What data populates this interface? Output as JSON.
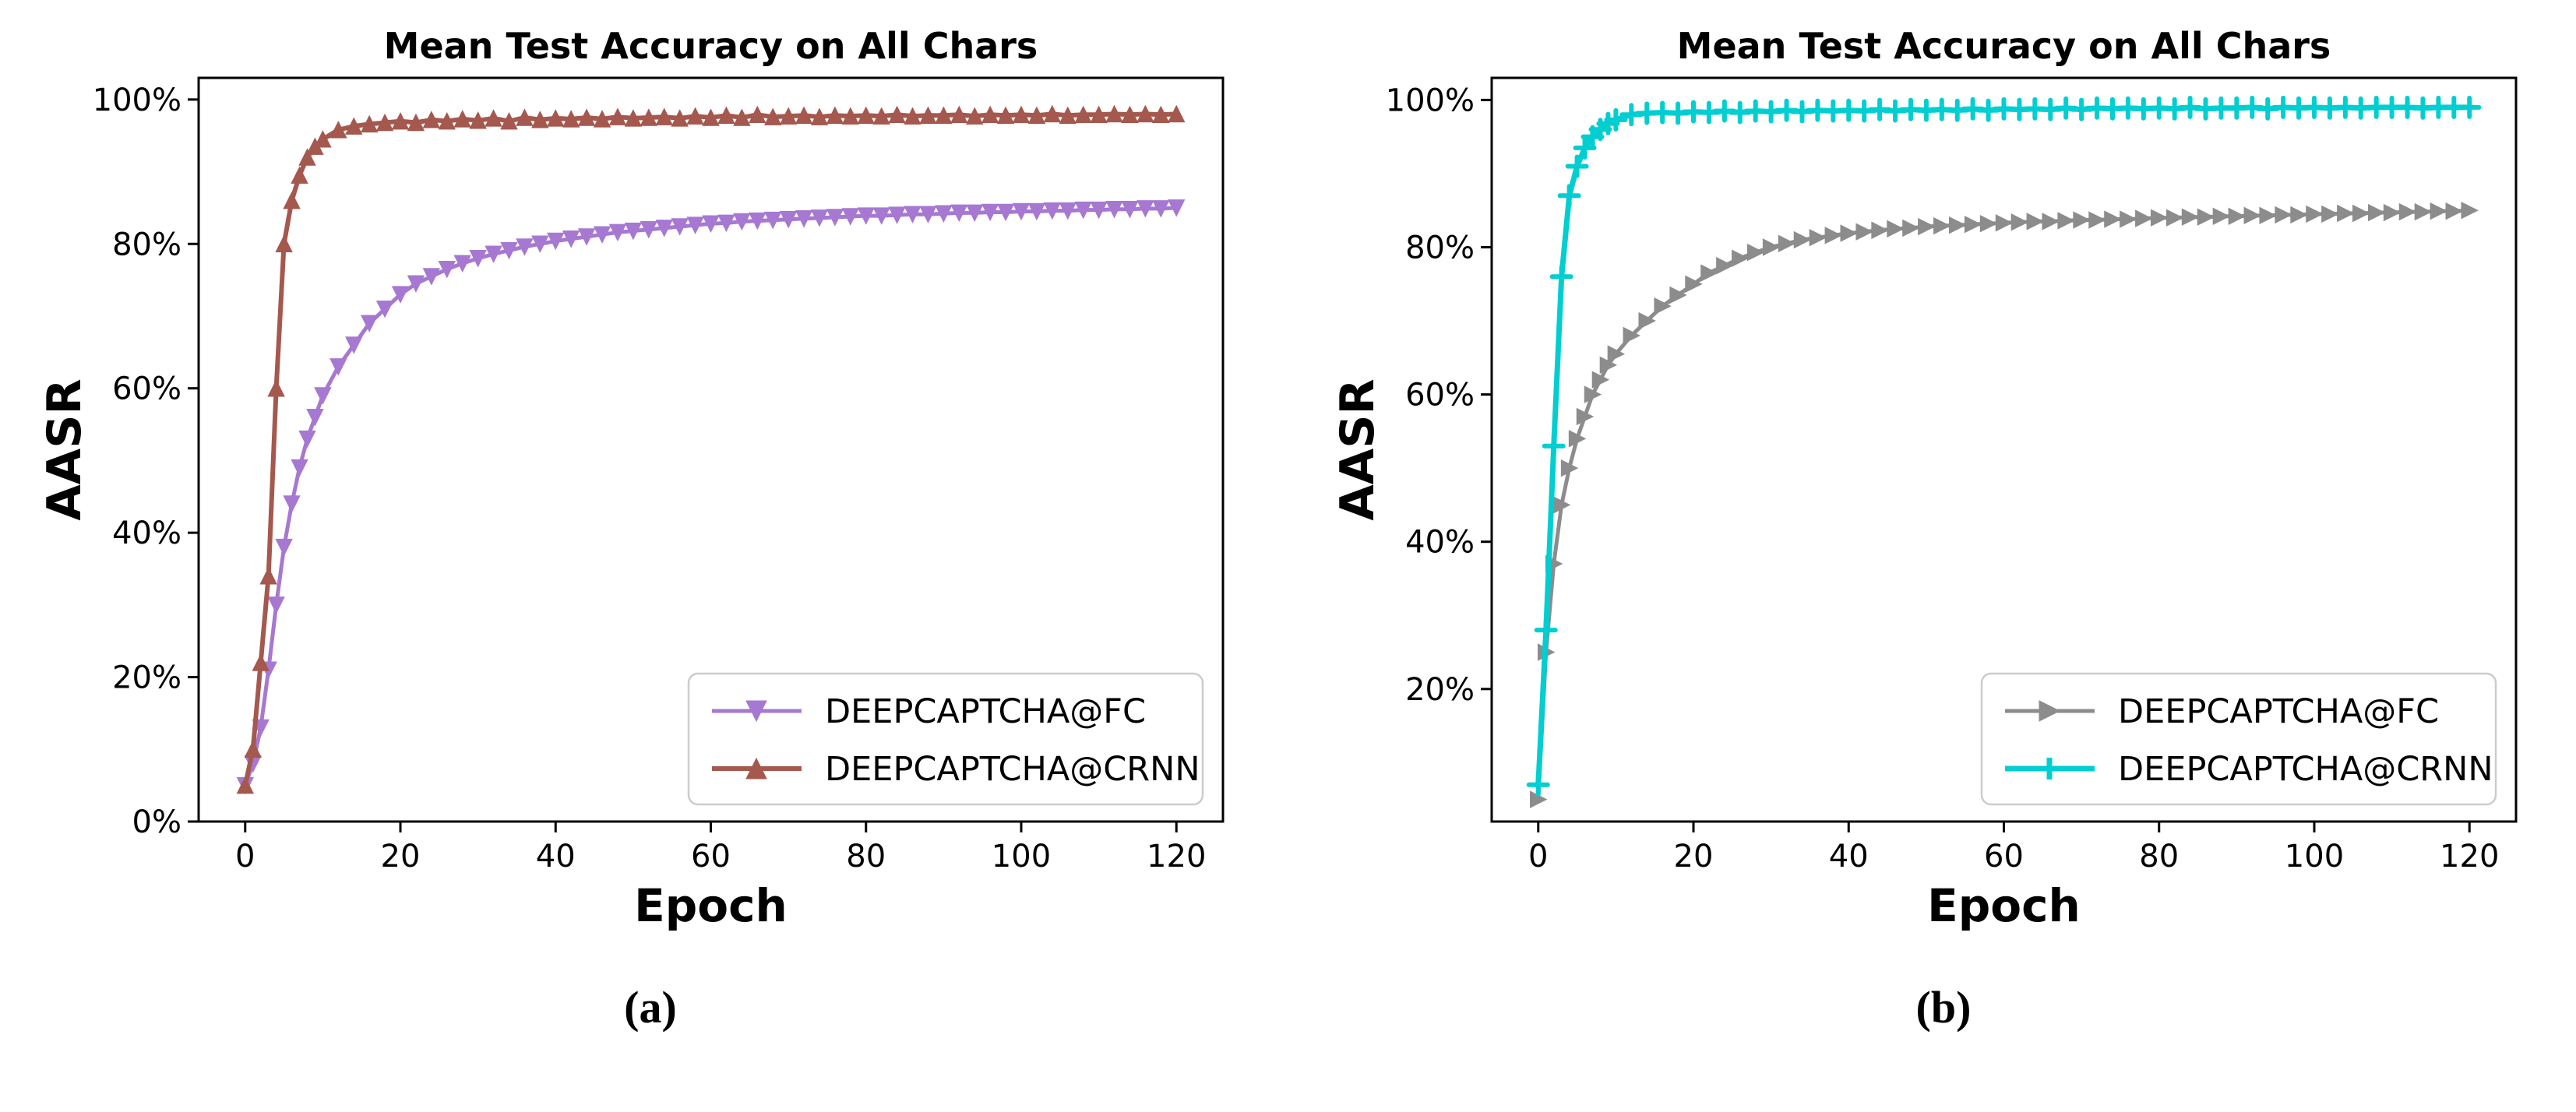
{
  "page": {
    "background": "#ffffff"
  },
  "captions": {
    "a": "(a)",
    "b": "(b)"
  },
  "chart_data": [
    {
      "id": "a",
      "type": "line",
      "title": "Mean Test Accuracy on All Chars",
      "xlabel": "Epoch",
      "ylabel": "AASR",
      "xlim": [
        -6,
        126
      ],
      "ylim": [
        0,
        103
      ],
      "xticks": [
        0,
        20,
        40,
        60,
        80,
        100,
        120
      ],
      "yticks": [
        0,
        20,
        40,
        60,
        80,
        100
      ],
      "ytick_suffix": "%",
      "grid": false,
      "legend_position": "lower right",
      "x": [
        0,
        1,
        2,
        3,
        4,
        5,
        6,
        7,
        8,
        9,
        10,
        12,
        14,
        16,
        18,
        20,
        22,
        24,
        26,
        28,
        30,
        32,
        34,
        36,
        38,
        40,
        42,
        44,
        46,
        48,
        50,
        52,
        54,
        56,
        58,
        60,
        62,
        64,
        66,
        68,
        70,
        72,
        74,
        76,
        78,
        80,
        82,
        84,
        86,
        88,
        90,
        92,
        94,
        96,
        98,
        100,
        102,
        104,
        106,
        108,
        110,
        112,
        114,
        116,
        118,
        120
      ],
      "series": [
        {
          "name": "DEEPCAPTCHA@FC",
          "color": "#a678d2",
          "marker": "triangle-down",
          "linewidth": 5,
          "values": [
            5,
            8,
            13,
            21,
            30,
            38,
            44,
            49,
            53,
            56,
            59,
            63,
            66,
            69,
            71,
            73,
            74.5,
            75.5,
            76.5,
            77.3,
            78,
            78.6,
            79.1,
            79.6,
            80,
            80.4,
            80.7,
            81,
            81.3,
            81.6,
            81.8,
            82,
            82.2,
            82.4,
            82.6,
            82.8,
            82.9,
            83.1,
            83.2,
            83.3,
            83.4,
            83.5,
            83.6,
            83.7,
            83.8,
            83.9,
            83.9,
            84,
            84.1,
            84.1,
            84.2,
            84.3,
            84.3,
            84.4,
            84.4,
            84.5,
            84.5,
            84.6,
            84.6,
            84.7,
            84.7,
            84.8,
            84.8,
            84.9,
            84.9,
            85
          ]
        },
        {
          "name": "DEEPCAPTCHA@CRNN",
          "color": "#a5584e",
          "marker": "triangle-up",
          "linewidth": 6,
          "values": [
            5,
            10,
            22,
            34,
            60,
            80,
            86,
            89.5,
            92,
            93.5,
            94.5,
            95.8,
            96.3,
            96.6,
            96.8,
            97,
            96.8,
            97.2,
            97,
            97.3,
            97.1,
            97.4,
            97,
            97.5,
            97.2,
            97.4,
            97.3,
            97.5,
            97.3,
            97.6,
            97.4,
            97.5,
            97.6,
            97.4,
            97.7,
            97.5,
            97.8,
            97.5,
            97.9,
            97.6,
            97.7,
            97.8,
            97.6,
            97.8,
            97.7,
            97.8,
            97.7,
            97.9,
            97.7,
            97.8,
            97.8,
            97.9,
            97.7,
            97.9,
            97.8,
            97.9,
            97.8,
            98,
            97.8,
            97.9,
            97.9,
            98,
            97.9,
            98,
            97.9,
            98
          ]
        }
      ]
    },
    {
      "id": "b",
      "type": "line",
      "title": "Mean Test Accuracy on All Chars",
      "xlabel": "Epoch",
      "ylabel": "AASR",
      "xlim": [
        -6,
        126
      ],
      "ylim": [
        2,
        103
      ],
      "xticks": [
        0,
        20,
        40,
        60,
        80,
        100,
        120
      ],
      "yticks": [
        20,
        40,
        60,
        80,
        100
      ],
      "ytick_suffix": "%",
      "grid": false,
      "legend_position": "lower right",
      "x": [
        0,
        1,
        2,
        3,
        4,
        5,
        6,
        7,
        8,
        9,
        10,
        12,
        14,
        16,
        18,
        20,
        22,
        24,
        26,
        28,
        30,
        32,
        34,
        36,
        38,
        40,
        42,
        44,
        46,
        48,
        50,
        52,
        54,
        56,
        58,
        60,
        62,
        64,
        66,
        68,
        70,
        72,
        74,
        76,
        78,
        80,
        82,
        84,
        86,
        88,
        90,
        92,
        94,
        96,
        98,
        100,
        102,
        104,
        106,
        108,
        110,
        112,
        114,
        116,
        118,
        120
      ],
      "series": [
        {
          "name": "DEEPCAPTCHA@FC",
          "color": "#8c8c8c",
          "marker": "triangle-right",
          "linewidth": 5,
          "values": [
            5,
            25,
            37,
            45,
            50,
            54,
            57,
            60,
            62,
            64,
            65.5,
            68,
            70,
            72,
            73.5,
            75,
            76.5,
            77.5,
            78.5,
            79.3,
            80,
            80.5,
            81,
            81.3,
            81.6,
            81.9,
            82.1,
            82.3,
            82.5,
            82.6,
            82.8,
            82.9,
            83,
            83.1,
            83.2,
            83.3,
            83.4,
            83.5,
            83.5,
            83.6,
            83.7,
            83.7,
            83.8,
            83.8,
            83.9,
            84,
            84,
            84.1,
            84.1,
            84.2,
            84.2,
            84.3,
            84.3,
            84.4,
            84.4,
            84.5,
            84.5,
            84.6,
            84.6,
            84.7,
            84.7,
            84.8,
            84.8,
            84.9,
            84.9,
            85
          ]
        },
        {
          "name": "DEEPCAPTCHA@CRNN",
          "color": "#00ced1",
          "marker": "plus",
          "linewidth": 7,
          "values": [
            7,
            28,
            53,
            76,
            87,
            91,
            93.5,
            95,
            96,
            96.8,
            97.3,
            98,
            98.2,
            98.3,
            98.2,
            98.4,
            98.3,
            98.5,
            98.3,
            98.5,
            98.4,
            98.6,
            98.4,
            98.6,
            98.5,
            98.6,
            98.5,
            98.7,
            98.5,
            98.7,
            98.6,
            98.7,
            98.6,
            98.8,
            98.6,
            98.8,
            98.7,
            98.8,
            98.7,
            98.9,
            98.7,
            98.9,
            98.8,
            98.9,
            98.8,
            98.9,
            98.8,
            99,
            98.8,
            98.9,
            98.9,
            99,
            98.8,
            99,
            98.9,
            99,
            98.9,
            99,
            98.9,
            99,
            99,
            99,
            98.9,
            99,
            99,
            99
          ]
        }
      ]
    }
  ]
}
